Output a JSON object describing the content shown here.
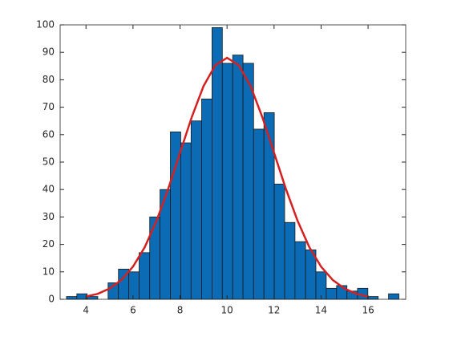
{
  "chart_data": {
    "type": "histogram",
    "bins": [
      3.17,
      3.61,
      4.05,
      4.5,
      4.94,
      5.38,
      5.82,
      6.26,
      6.71,
      7.15,
      7.59,
      8.03,
      8.47,
      8.92,
      9.36,
      9.8,
      10.24,
      10.68,
      11.13,
      11.57,
      12.01,
      12.45,
      12.89,
      13.34,
      13.78,
      14.22,
      14.66,
      15.1,
      15.55,
      15.99,
      16.43,
      16.87,
      17.31
    ],
    "values": [
      1,
      2,
      1,
      0,
      6,
      11,
      10,
      17,
      30,
      40,
      61,
      57,
      65,
      73,
      99,
      86,
      89,
      86,
      62,
      68,
      42,
      28,
      21,
      18,
      10,
      4,
      5,
      3,
      4,
      1,
      0,
      2
    ],
    "color": "#0b6bb5",
    "fit": {
      "color": "#d42020",
      "x": [
        4,
        4.5,
        5,
        5.5,
        6,
        6.5,
        7,
        7.5,
        8,
        8.5,
        9,
        9.5,
        10,
        10.5,
        11,
        11.5,
        12,
        12.5,
        13,
        13.5,
        14,
        14.5,
        15,
        15.5,
        16
      ],
      "y": [
        1.0,
        2.0,
        3.9,
        7.0,
        11.9,
        19.0,
        28.6,
        40.3,
        53.4,
        66.4,
        77.7,
        85.3,
        88,
        85.3,
        77.7,
        66.4,
        53.4,
        40.3,
        28.6,
        19.0,
        11.9,
        7.0,
        3.9,
        2.0,
        1.0
      ]
    },
    "xlim": [
      2.9,
      17.6
    ],
    "ylim": [
      0,
      100
    ],
    "xticks": [
      4,
      6,
      8,
      10,
      12,
      14,
      16
    ],
    "yticks": [
      0,
      10,
      20,
      30,
      40,
      50,
      60,
      70,
      80,
      90,
      100
    ]
  }
}
